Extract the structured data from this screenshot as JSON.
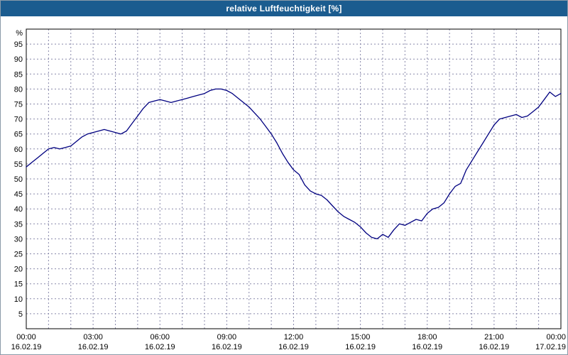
{
  "window": {
    "title": "relative Luftfeuchtigkeit [%]"
  },
  "colors": {
    "title_bar": "#1b5c8f",
    "title_text": "#ffffff",
    "line": "#000080",
    "grid": "#8888aa",
    "axis": "#000000",
    "background": "#ffffff"
  },
  "chart_data": {
    "type": "line",
    "title": "relative Luftfeuchtigkeit [%]",
    "y_unit_label": "%",
    "ylabel": "",
    "xlabel": "",
    "ylim": [
      0,
      100
    ],
    "yticks": [
      5,
      10,
      15,
      20,
      25,
      30,
      35,
      40,
      45,
      50,
      55,
      60,
      65,
      70,
      75,
      80,
      85,
      90,
      95
    ],
    "grid": true,
    "legend": false,
    "x_range_hours": [
      0,
      24
    ],
    "x_sample_step_hours": 0.25,
    "xticks": [
      {
        "time": "00:00",
        "date": "16.02.19"
      },
      {
        "time": "03:00",
        "date": "16.02.19"
      },
      {
        "time": "06:00",
        "date": "16.02.19"
      },
      {
        "time": "09:00",
        "date": "16.02.19"
      },
      {
        "time": "12:00",
        "date": "16.02.19"
      },
      {
        "time": "15:00",
        "date": "16.02.19"
      },
      {
        "time": "18:00",
        "date": "16.02.19"
      },
      {
        "time": "21:00",
        "date": "16.02.19"
      },
      {
        "time": "00:00",
        "date": "17.02.19"
      }
    ],
    "series": [
      {
        "name": "relative Luftfeuchtigkeit",
        "unit": "%",
        "values": [
          54,
          55.5,
          57,
          58.5,
          60,
          60.5,
          60,
          60.5,
          61,
          62.5,
          64,
          65,
          65.5,
          66,
          66.5,
          66,
          65.5,
          65,
          66,
          68.5,
          71,
          73.5,
          75.5,
          76,
          76.5,
          76,
          75.5,
          76,
          76.5,
          77,
          77.5,
          78,
          78.5,
          79.5,
          80,
          80,
          79.5,
          78.5,
          77,
          75.5,
          74,
          72,
          70,
          67.5,
          65,
          62,
          58.5,
          55.5,
          53,
          51.5,
          48,
          46,
          45,
          44.5,
          43,
          41,
          39,
          37.5,
          36.5,
          35.5,
          34,
          32,
          30.5,
          30,
          31.5,
          30.5,
          33,
          35,
          34.5,
          35.5,
          36.5,
          36,
          38.5,
          40,
          40.5,
          42,
          45,
          47.5,
          48.5,
          53,
          56,
          59,
          62,
          65,
          68,
          70,
          70.5,
          71,
          71.5,
          70.5,
          71,
          72.5,
          74,
          76.5,
          79,
          77.5,
          78.5
        ]
      }
    ]
  }
}
